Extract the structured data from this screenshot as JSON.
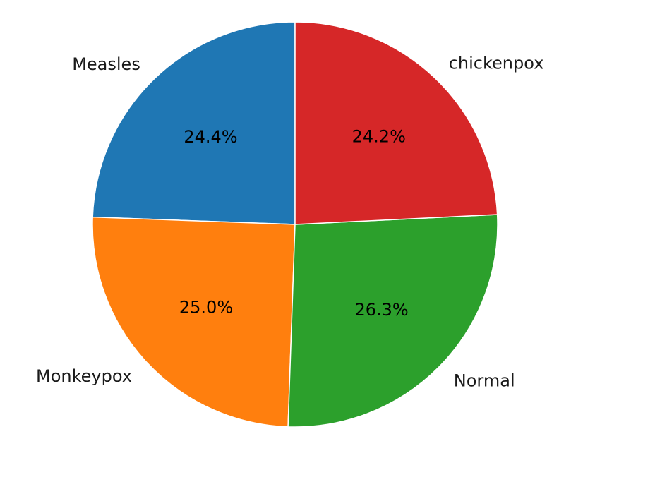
{
  "chart_data": {
    "type": "pie",
    "start_angle_deg": 90,
    "direction": "counterclockwise",
    "categories": [
      "Measles",
      "Monkeypox",
      "Normal",
      "chickenpox"
    ],
    "values": [
      24.4,
      25.0,
      26.3,
      24.2
    ],
    "percent_labels": [
      "24.4%",
      "25.0%",
      "26.3%",
      "24.2%"
    ],
    "colors": [
      "#1f77b4",
      "#ff7f0e",
      "#2ca02c",
      "#d62728"
    ],
    "title": "",
    "legend": "none"
  }
}
